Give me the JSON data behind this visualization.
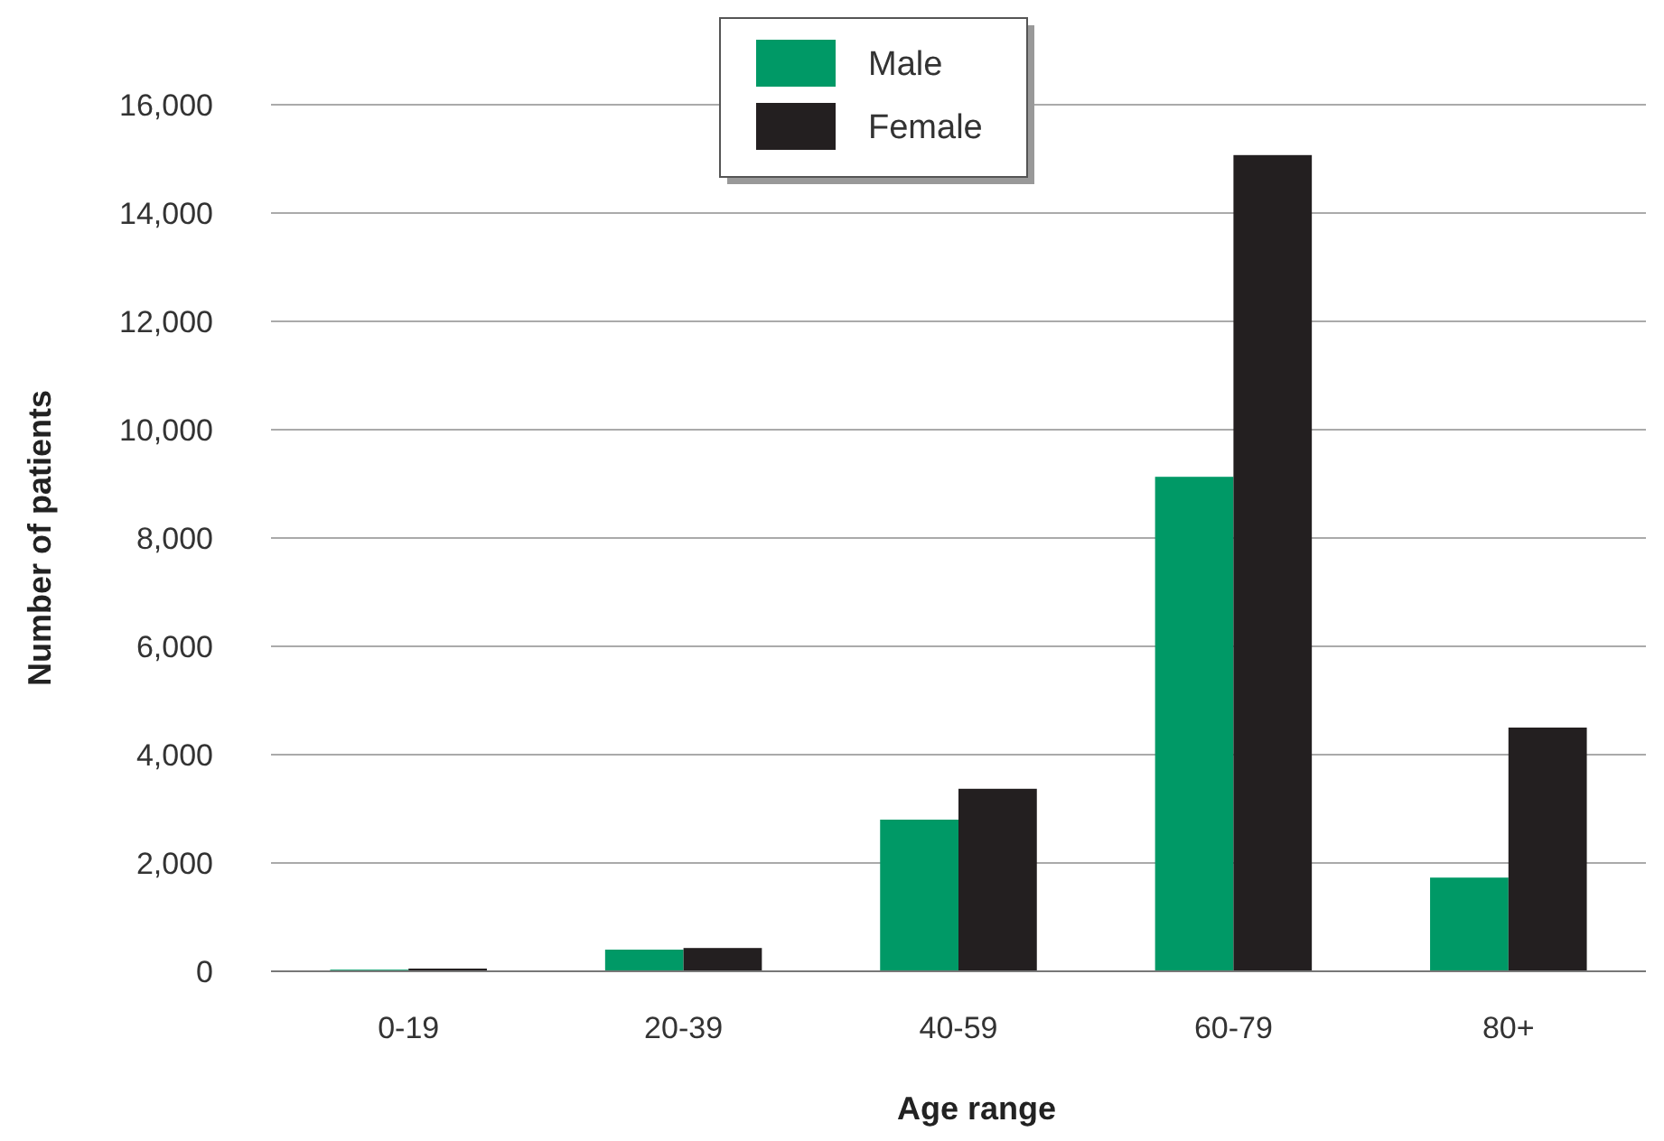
{
  "chart_data": {
    "type": "bar",
    "xlabel": "Age range",
    "ylabel": "Number of patients",
    "categories": [
      "0-19",
      "20-39",
      "40-59",
      "60-79",
      "80+"
    ],
    "series": [
      {
        "name": "Male",
        "color": "#009966",
        "values": [
          30,
          400,
          2800,
          9130,
          1730
        ]
      },
      {
        "name": "Female",
        "color": "#231f20",
        "values": [
          50,
          430,
          3370,
          15070,
          4500
        ]
      }
    ],
    "ylim": [
      0,
      16000
    ],
    "yticks": [
      {
        "value": 0,
        "label": "0"
      },
      {
        "value": 2000,
        "label": "2,000"
      },
      {
        "value": 4000,
        "label": "4,000"
      },
      {
        "value": 6000,
        "label": "6,000"
      },
      {
        "value": 8000,
        "label": "8,000"
      },
      {
        "value": 10000,
        "label": "10,000"
      },
      {
        "value": 12000,
        "label": "12,000"
      },
      {
        "value": 14000,
        "label": "14,000"
      },
      {
        "value": 16000,
        "label": "16,000"
      }
    ],
    "grid": "y",
    "legend": "top"
  }
}
